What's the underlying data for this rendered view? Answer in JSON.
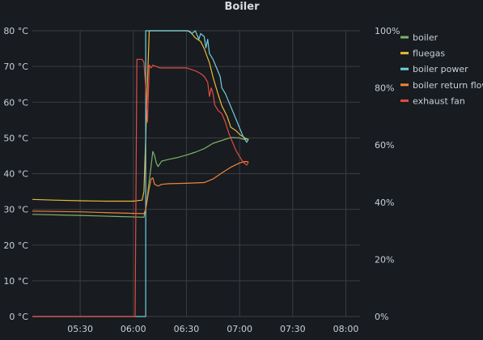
{
  "chart_data": {
    "type": "line",
    "title": "Boiler",
    "xlabel": "",
    "ylabel": "",
    "x_ticks": [
      "05:30",
      "06:00",
      "06:30",
      "07:00",
      "07:30",
      "08:00"
    ],
    "y_left_ticks": [
      "0 °C",
      "10 °C",
      "20 °C",
      "30 °C",
      "40 °C",
      "50 °C",
      "60 °C",
      "70 °C",
      "80 °C"
    ],
    "y_right_ticks": [
      "0%",
      "20%",
      "40%",
      "60%",
      "80%",
      "100%"
    ],
    "y_left_range": [
      0,
      80
    ],
    "y_right_range": [
      0,
      100
    ],
    "x_range": [
      "05:03",
      "08:08"
    ],
    "grid": true,
    "legend_position": "right",
    "series": [
      {
        "name": "boiler",
        "color": "#7eb26d",
        "axis": "left",
        "points": [
          [
            "05:03",
            28.6
          ],
          [
            "05:30",
            28.3
          ],
          [
            "05:50",
            28.0
          ],
          [
            "06:06",
            27.8
          ],
          [
            "06:07",
            30
          ],
          [
            "06:08",
            34
          ],
          [
            "06:09",
            38
          ],
          [
            "06:10",
            42
          ],
          [
            "06:11",
            46.2
          ],
          [
            "06:12",
            45
          ],
          [
            "06:13",
            43
          ],
          [
            "06:14",
            42
          ],
          [
            "06:16",
            43.5
          ],
          [
            "06:20",
            44
          ],
          [
            "06:25",
            44.5
          ],
          [
            "06:30",
            45.2
          ],
          [
            "06:35",
            46
          ],
          [
            "06:40",
            47
          ],
          [
            "06:45",
            48.5
          ],
          [
            "06:50",
            49.3
          ],
          [
            "06:55",
            50.1
          ],
          [
            "07:00",
            50.0
          ],
          [
            "07:02",
            49.6
          ],
          [
            "07:05",
            49.7
          ]
        ]
      },
      {
        "name": "fluegas",
        "color": "#eab839",
        "axis": "left",
        "points": [
          [
            "05:03",
            32.8
          ],
          [
            "05:15",
            32.6
          ],
          [
            "05:30",
            32.4
          ],
          [
            "05:45",
            32.3
          ],
          [
            "06:00",
            32.3
          ],
          [
            "06:05",
            32.6
          ],
          [
            "06:06",
            35
          ],
          [
            "06:07",
            50
          ],
          [
            "06:08",
            66
          ],
          [
            "06:09",
            80
          ],
          [
            "06:10",
            80
          ],
          [
            "06:12",
            80
          ],
          [
            "06:15",
            80
          ],
          [
            "06:20",
            80
          ],
          [
            "06:25",
            80
          ],
          [
            "06:30",
            80
          ],
          [
            "06:32",
            79.8
          ],
          [
            "06:35",
            78
          ],
          [
            "06:38",
            77
          ],
          [
            "06:40",
            75
          ],
          [
            "06:43",
            71
          ],
          [
            "06:45",
            67
          ],
          [
            "06:48",
            62
          ],
          [
            "06:50",
            59
          ],
          [
            "06:53",
            56
          ],
          [
            "06:55",
            53
          ],
          [
            "06:58",
            52
          ],
          [
            "07:00",
            51
          ],
          [
            "07:03",
            50
          ],
          [
            "07:05",
            49.5
          ]
        ]
      },
      {
        "name": "boiler power",
        "color": "#6ed0e0",
        "axis": "right",
        "points": [
          [
            "05:03",
            0
          ],
          [
            "06:00",
            0
          ],
          [
            "06:07",
            0
          ],
          [
            "06:07",
            100
          ],
          [
            "06:15",
            100
          ],
          [
            "06:25",
            100
          ],
          [
            "06:31",
            100
          ],
          [
            "06:33",
            99
          ],
          [
            "06:35",
            100
          ],
          [
            "06:37",
            97
          ],
          [
            "06:38",
            99
          ],
          [
            "06:40",
            98
          ],
          [
            "06:41",
            94
          ],
          [
            "06:42",
            97
          ],
          [
            "06:43",
            92
          ],
          [
            "06:45",
            90
          ],
          [
            "06:47",
            87
          ],
          [
            "06:49",
            84
          ],
          [
            "06:50",
            80
          ],
          [
            "06:52",
            78
          ],
          [
            "06:54",
            75
          ],
          [
            "06:56",
            72
          ],
          [
            "06:58",
            69
          ],
          [
            "07:00",
            66
          ],
          [
            "07:02",
            63
          ],
          [
            "07:04",
            61
          ],
          [
            "07:05",
            62
          ]
        ]
      },
      {
        "name": "boiler return flow",
        "color": "#ef843c",
        "axis": "left",
        "points": [
          [
            "05:03",
            29.5
          ],
          [
            "05:30",
            29.3
          ],
          [
            "05:50",
            29.0
          ],
          [
            "06:06",
            28.8
          ],
          [
            "06:07",
            30
          ],
          [
            "06:08",
            33
          ],
          [
            "06:09",
            36
          ],
          [
            "06:10",
            38.5
          ],
          [
            "06:11",
            38.8
          ],
          [
            "06:12",
            37
          ],
          [
            "06:14",
            36.5
          ],
          [
            "06:16",
            37
          ],
          [
            "06:20",
            37.2
          ],
          [
            "06:30",
            37.3
          ],
          [
            "06:40",
            37.5
          ],
          [
            "06:45",
            38.5
          ],
          [
            "06:50",
            40.2
          ],
          [
            "06:55",
            41.8
          ],
          [
            "07:00",
            43.0
          ],
          [
            "07:03",
            43.4
          ],
          [
            "07:05",
            43.3
          ]
        ]
      },
      {
        "name": "exhaust fan",
        "color": "#e24d42",
        "axis": "right",
        "points": [
          [
            "05:03",
            0
          ],
          [
            "06:00",
            0
          ],
          [
            "06:01",
            0
          ],
          [
            "06:02",
            90
          ],
          [
            "06:05",
            90
          ],
          [
            "06:06",
            89
          ],
          [
            "06:07",
            80
          ],
          [
            "06:08",
            68
          ],
          [
            "06:09",
            88
          ],
          [
            "06:10",
            87
          ],
          [
            "06:11",
            88
          ],
          [
            "06:15",
            87
          ],
          [
            "06:20",
            87
          ],
          [
            "06:25",
            87
          ],
          [
            "06:30",
            87
          ],
          [
            "06:35",
            86
          ],
          [
            "06:38",
            85
          ],
          [
            "06:40",
            84
          ],
          [
            "06:42",
            82
          ],
          [
            "06:43",
            77
          ],
          [
            "06:44",
            80
          ],
          [
            "06:45",
            78
          ],
          [
            "06:46",
            74
          ],
          [
            "06:48",
            72
          ],
          [
            "06:50",
            71
          ],
          [
            "06:52",
            68
          ],
          [
            "06:54",
            64
          ],
          [
            "06:56",
            61
          ],
          [
            "06:58",
            58
          ],
          [
            "07:00",
            56
          ],
          [
            "07:02",
            54
          ],
          [
            "07:04",
            53
          ],
          [
            "07:05",
            54
          ]
        ]
      }
    ]
  }
}
